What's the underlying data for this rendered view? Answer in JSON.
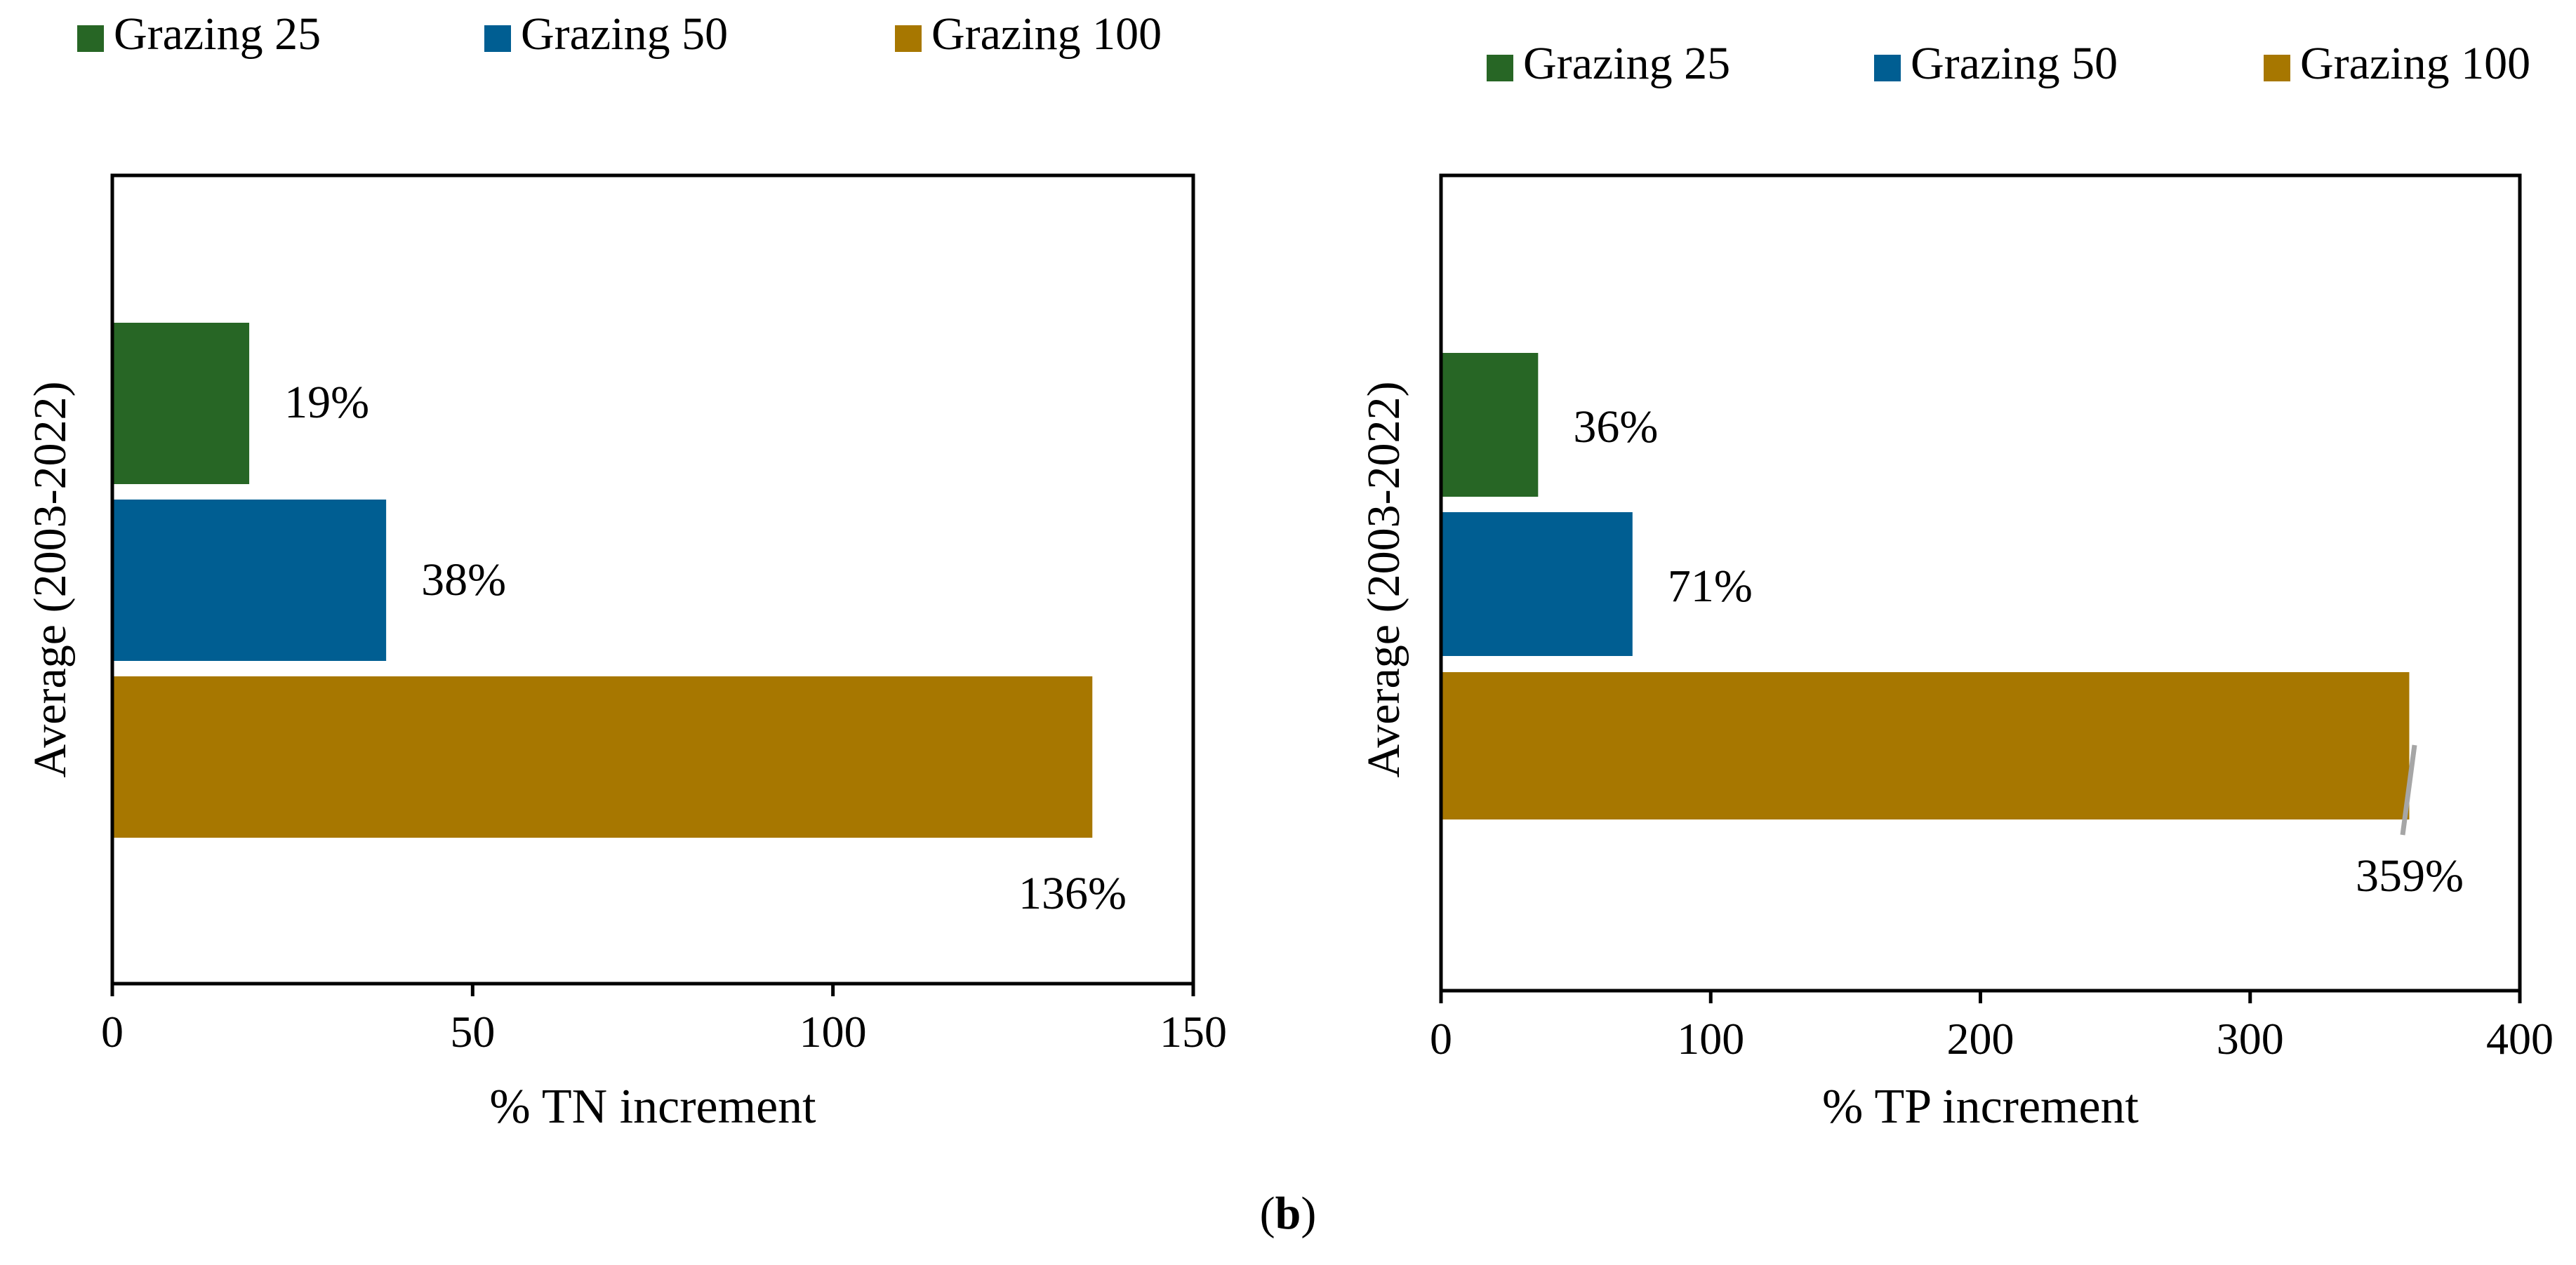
{
  "chart_data": [
    {
      "type": "bar",
      "orientation": "horizontal",
      "categories": [
        "Average (2003-2022)"
      ],
      "series": [
        {
          "name": "Grazing 25",
          "values": [
            19
          ],
          "color": "#276625"
        },
        {
          "name": "Grazing 50",
          "values": [
            38
          ],
          "color": "#005e92"
        },
        {
          "name": "Grazing 100",
          "values": [
            136
          ],
          "color": "#a77700"
        }
      ],
      "data_labels": [
        "19%",
        "38%",
        "136%"
      ],
      "xlabel": "% TN increment",
      "ylabel": "Average (2003-2022)",
      "xlim": [
        0,
        150
      ],
      "xticks": [
        0,
        50,
        100,
        150
      ],
      "grid": false,
      "legend": "top"
    },
    {
      "type": "bar",
      "orientation": "horizontal",
      "categories": [
        "Average (2003-2022)"
      ],
      "series": [
        {
          "name": "Grazing 25",
          "values": [
            36
          ],
          "color": "#276625"
        },
        {
          "name": "Grazing 50",
          "values": [
            71
          ],
          "color": "#005e92"
        },
        {
          "name": "Grazing 100",
          "values": [
            359
          ],
          "color": "#a77700"
        }
      ],
      "data_labels": [
        "36%",
        "71%",
        "359%"
      ],
      "xlabel": "%  TP increment",
      "ylabel": "Average (2003-2022)",
      "xlim": [
        0,
        400
      ],
      "xticks": [
        0,
        100,
        200,
        300,
        400
      ],
      "grid": false,
      "legend": "top"
    }
  ],
  "caption": {
    "open": "(",
    "letter": "b",
    "close": ")"
  }
}
